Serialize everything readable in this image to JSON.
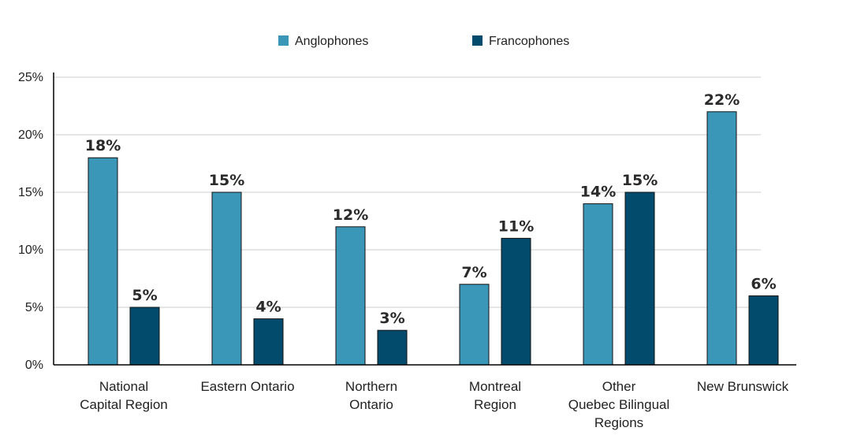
{
  "chart_data": {
    "type": "bar",
    "categories": [
      [
        "National",
        "Capital Region"
      ],
      [
        "Eastern Ontario"
      ],
      [
        "Northern",
        "Ontario"
      ],
      [
        "Montreal",
        "Region"
      ],
      [
        "Other",
        "Quebec Bilingual",
        "Regions"
      ],
      [
        "New Brunswick"
      ]
    ],
    "series": [
      {
        "name": "Anglophones",
        "values": [
          18,
          15,
          12,
          7,
          14,
          22
        ],
        "labels": [
          "18%",
          "15%",
          "12%",
          "7%",
          "14%",
          "22%"
        ],
        "color": "#3a97b8"
      },
      {
        "name": "Francophones",
        "values": [
          5,
          4,
          3,
          11,
          15,
          6
        ],
        "labels": [
          "5%",
          "4%",
          "3%",
          "11%",
          "15%",
          "6%"
        ],
        "color": "#024b6c"
      }
    ],
    "yticks": [
      0,
      5,
      10,
      15,
      20,
      25
    ],
    "ytick_labels": [
      "0%",
      "5%",
      "10%",
      "15%",
      "20%",
      "25%"
    ],
    "ylim": [
      0,
      25
    ],
    "grid": true,
    "legend": "top-center"
  }
}
